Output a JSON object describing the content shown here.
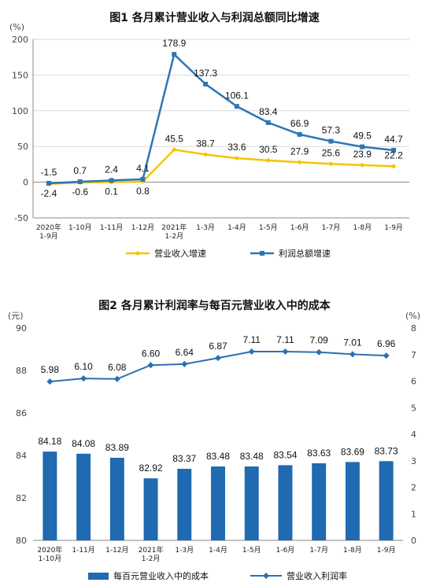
{
  "chart_data": [
    {
      "type": "line",
      "title": "图1  各月累计营业收入与利润总额同比增速",
      "unit": "(%)",
      "categories": [
        [
          "2020年",
          "1-9月"
        ],
        [
          "1-10月"
        ],
        [
          "1-11月"
        ],
        [
          "1-12月"
        ],
        [
          "2021年",
          "1-2月"
        ],
        [
          "1-3月"
        ],
        [
          "1-4月"
        ],
        [
          "1-5月"
        ],
        [
          "1-6月"
        ],
        [
          "1-7月"
        ],
        [
          "1-8月"
        ],
        [
          "1-9月"
        ]
      ],
      "ylim": [
        -50,
        200
      ],
      "yticks": [
        "-50",
        "0",
        "50",
        "100",
        "150",
        "200"
      ],
      "grid": true,
      "legend_position": "bottom",
      "series": [
        {
          "name": "营业收入增速",
          "color": "#f5c400",
          "values": [
            -2.4,
            -0.6,
            0.1,
            0.8,
            45.5,
            38.7,
            33.6,
            30.5,
            27.9,
            25.6,
            23.9,
            22.2
          ],
          "labels": [
            "-2.4",
            "-0.6",
            "0.1",
            "0.8",
            "45.5",
            "38.7",
            "33.6",
            "30.5",
            "27.9",
            "25.6",
            "23.9",
            "22.2"
          ]
        },
        {
          "name": "利润总额增速",
          "color": "#2e75b6",
          "values": [
            -1.5,
            0.7,
            2.4,
            4.1,
            178.9,
            137.3,
            106.1,
            83.4,
            66.9,
            57.3,
            49.5,
            44.7
          ],
          "labels": [
            "-1.5",
            "0.7",
            "2.4",
            "4.1",
            "178.9",
            "137.3",
            "106.1",
            "83.4",
            "66.9",
            "57.3",
            "49.5",
            "44.7"
          ]
        }
      ]
    },
    {
      "type": "bar",
      "title": "图2  各月累计利润率与每百元营业收入中的成本",
      "unit_left": "(元)",
      "unit_right": "(%)",
      "categories": [
        [
          "2020年",
          "1-10月"
        ],
        [
          "1-11月"
        ],
        [
          "1-12月"
        ],
        [
          "2021年",
          "1-2月"
        ],
        [
          "1-3月"
        ],
        [
          "1-4月"
        ],
        [
          "1-5月"
        ],
        [
          "1-6月"
        ],
        [
          "1-7月"
        ],
        [
          "1-8月"
        ],
        [
          "1-9月"
        ]
      ],
      "ylim_left": [
        80,
        90
      ],
      "yticks_left": [
        "80",
        "82",
        "84",
        "86",
        "88",
        "90"
      ],
      "ylim_right": [
        0,
        8
      ],
      "yticks_right": [
        "0",
        "1",
        "2",
        "3",
        "4",
        "5",
        "6",
        "7",
        "8"
      ],
      "grid": false,
      "legend_position": "bottom",
      "series": [
        {
          "name": "每百元营业收入中的成本",
          "kind": "bar",
          "axis": "left",
          "color": "#1f6ab0",
          "values": [
            84.18,
            84.08,
            83.89,
            82.92,
            83.37,
            83.48,
            83.48,
            83.54,
            83.63,
            83.69,
            83.73
          ],
          "labels": [
            "84.18",
            "84.08",
            "83.89",
            "82.92",
            "83.37",
            "83.48",
            "83.48",
            "83.54",
            "83.63",
            "83.69",
            "83.73"
          ]
        },
        {
          "name": "营业收入利润率",
          "kind": "line",
          "axis": "right",
          "color": "#2e6fb0",
          "values": [
            5.98,
            6.1,
            6.08,
            6.6,
            6.64,
            6.87,
            7.11,
            7.11,
            7.09,
            7.01,
            6.96
          ],
          "labels": [
            "5.98",
            "6.10",
            "6.08",
            "6.60",
            "6.64",
            "6.87",
            "7.11",
            "7.11",
            "7.09",
            "7.01",
            "6.96"
          ]
        }
      ]
    }
  ]
}
